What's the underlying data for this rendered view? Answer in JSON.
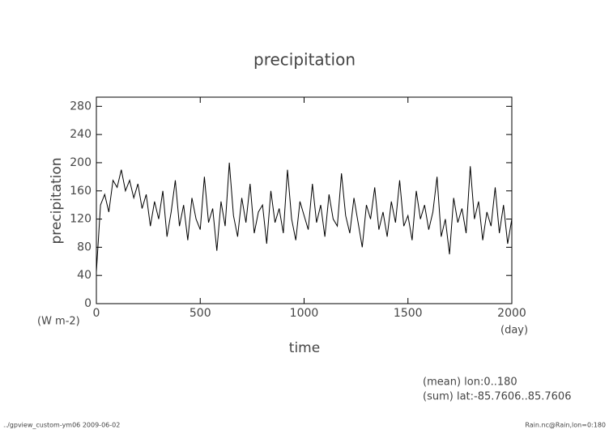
{
  "chart_data": {
    "type": "line",
    "title": "precipitation",
    "ylabel": "precipitation",
    "xlabel": "time",
    "y_units": "(W m-2)",
    "x_units": "(day)",
    "annotations": [
      "(mean) lon:0..180",
      "(sum) lat:-85.7606..85.7606"
    ],
    "footer_left": "../gpview_custom-ym06  2009-06-02",
    "footer_right": "Rain.nc@Rain,lon=0:180",
    "color": "#000000",
    "x": [
      0,
      20,
      40,
      60,
      80,
      100,
      120,
      140,
      160,
      180,
      200,
      220,
      240,
      260,
      280,
      300,
      320,
      340,
      360,
      380,
      400,
      420,
      440,
      460,
      480,
      500,
      520,
      540,
      560,
      580,
      600,
      620,
      640,
      660,
      680,
      700,
      720,
      740,
      760,
      780,
      800,
      820,
      840,
      860,
      880,
      900,
      920,
      940,
      960,
      980,
      1000,
      1020,
      1040,
      1060,
      1080,
      1100,
      1120,
      1140,
      1160,
      1180,
      1200,
      1220,
      1240,
      1260,
      1280,
      1300,
      1320,
      1340,
      1360,
      1380,
      1400,
      1420,
      1440,
      1460,
      1480,
      1500,
      1520,
      1540,
      1560,
      1580,
      1600,
      1620,
      1640,
      1660,
      1680,
      1700,
      1720,
      1740,
      1760,
      1780,
      1800,
      1820,
      1840,
      1860,
      1880,
      1900,
      1920,
      1940,
      1960,
      1980,
      2000
    ],
    "values": [
      45,
      140,
      155,
      130,
      175,
      165,
      190,
      160,
      175,
      150,
      170,
      135,
      155,
      110,
      145,
      120,
      160,
      95,
      130,
      175,
      110,
      140,
      90,
      150,
      120,
      105,
      180,
      115,
      135,
      75,
      145,
      110,
      200,
      125,
      95,
      150,
      115,
      170,
      100,
      130,
      140,
      85,
      160,
      115,
      135,
      100,
      190,
      120,
      90,
      145,
      125,
      105,
      170,
      115,
      140,
      95,
      155,
      120,
      110,
      185,
      125,
      100,
      150,
      115,
      80,
      140,
      120,
      165,
      105,
      130,
      95,
      145,
      115,
      175,
      110,
      125,
      90,
      160,
      120,
      140,
      105,
      130,
      180,
      95,
      120,
      70,
      150,
      115,
      135,
      100,
      195,
      120,
      145,
      90,
      130,
      110,
      165,
      100,
      140,
      85,
      120
    ],
    "xlim": [
      0,
      2000
    ],
    "xticks": [
      0,
      500,
      1000,
      1500,
      2000
    ],
    "ylim": [
      0,
      293
    ],
    "yticks": [
      0,
      40,
      80,
      120,
      160,
      200,
      240,
      280
    ]
  }
}
